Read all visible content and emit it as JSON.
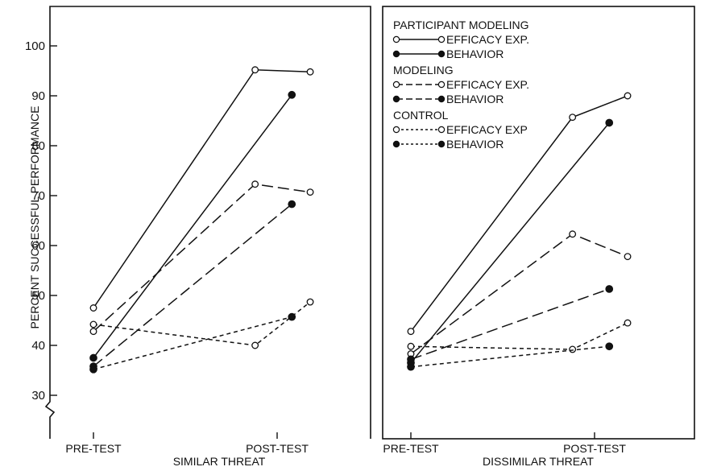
{
  "chart_data": {
    "type": "line",
    "ylabel": "PERCENT SUCCESSFUL PERFORMANCE",
    "ylim": [
      25,
      105
    ],
    "yticks": [
      30,
      40,
      50,
      60,
      70,
      80,
      90,
      100
    ],
    "categories": [
      "PRE-TEST",
      "POST-TEST"
    ],
    "legend": {
      "placement": "top-right of right panel",
      "groups": [
        {
          "title": "PARTICIPANT MODELING",
          "entries": [
            {
              "label": "EFFICACY EXP.",
              "style": "solid",
              "marker": "open"
            },
            {
              "label": "BEHAVIOR",
              "style": "solid",
              "marker": "filled"
            }
          ]
        },
        {
          "title": "MODELING",
          "entries": [
            {
              "label": "EFFICACY EXP.",
              "style": "dashed",
              "marker": "open"
            },
            {
              "label": "BEHAVIOR",
              "style": "dashed",
              "marker": "filled"
            }
          ]
        },
        {
          "title": "CONTROL",
          "entries": [
            {
              "label": "EFFICACY EXP",
              "style": "dotted",
              "marker": "open"
            },
            {
              "label": "BEHAVIOR",
              "style": "dotted",
              "marker": "filled"
            }
          ]
        }
      ]
    },
    "panels": [
      {
        "xlabel": "SIMILAR THREAT",
        "series": [
          {
            "style": "solid",
            "marker": "open",
            "points": [
              [
                0,
                47.5
              ],
              [
                0.88,
                95.2
              ],
              [
                1.18,
                94.8
              ]
            ]
          },
          {
            "style": "solid",
            "marker": "filled",
            "points": [
              [
                0,
                37.5
              ],
              [
                1.08,
                90.2
              ]
            ]
          },
          {
            "style": "dashed",
            "marker": "open",
            "points": [
              [
                0,
                42.8
              ],
              [
                0.88,
                72.3
              ],
              [
                1.18,
                70.7
              ]
            ]
          },
          {
            "style": "dashed",
            "marker": "filled",
            "points": [
              [
                0,
                35.8
              ],
              [
                1.08,
                68.3
              ]
            ]
          },
          {
            "style": "dotted",
            "marker": "open",
            "points": [
              [
                0,
                44.2
              ],
              [
                0.88,
                40.0
              ],
              [
                1.18,
                48.7
              ]
            ]
          },
          {
            "style": "dotted",
            "marker": "filled",
            "points": [
              [
                0,
                35.2
              ],
              [
                1.08,
                45.7
              ]
            ]
          }
        ]
      },
      {
        "xlabel": "DISSIMILAR THREAT",
        "series": [
          {
            "style": "solid",
            "marker": "open",
            "points": [
              [
                0,
                42.8
              ],
              [
                0.88,
                85.7
              ],
              [
                1.18,
                90.0
              ]
            ]
          },
          {
            "style": "solid",
            "marker": "filled",
            "points": [
              [
                0,
                36.5
              ],
              [
                1.08,
                84.6
              ]
            ]
          },
          {
            "style": "dashed",
            "marker": "open",
            "points": [
              [
                0,
                38.3
              ],
              [
                0.88,
                62.3
              ],
              [
                1.18,
                57.8
              ]
            ]
          },
          {
            "style": "dashed",
            "marker": "filled",
            "points": [
              [
                0,
                37.2
              ],
              [
                1.08,
                51.3
              ]
            ]
          },
          {
            "style": "dotted",
            "marker": "open",
            "points": [
              [
                0,
                39.8
              ],
              [
                0.88,
                39.2
              ],
              [
                1.18,
                44.5
              ]
            ]
          },
          {
            "style": "dotted",
            "marker": "filled",
            "points": [
              [
                0,
                35.7
              ],
              [
                1.08,
                39.8
              ]
            ]
          }
        ]
      }
    ],
    "colors": {
      "ink": "#111111",
      "background": "#ffffff"
    }
  }
}
